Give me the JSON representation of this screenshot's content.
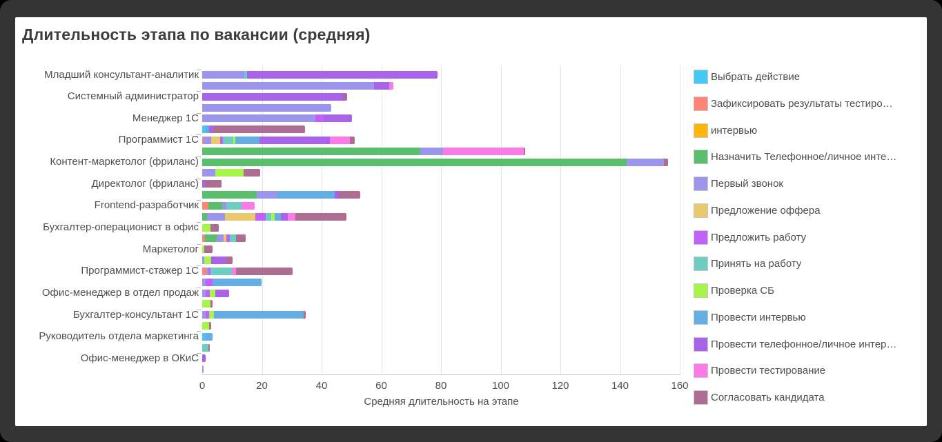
{
  "title": "Длительность этапа по вакансии (средняя)",
  "chart_data": {
    "type": "bar",
    "orientation": "horizontal",
    "stacked": true,
    "bars_per_category": 2,
    "title": "Длительность этапа по вакансии (средняя)",
    "xlabel": "Средняя длительность на этапе",
    "xlim": [
      0,
      160
    ],
    "xticks": [
      0,
      20,
      40,
      60,
      80,
      100,
      120,
      140,
      160
    ],
    "grid": true,
    "legend_position": "right",
    "stages": [
      {
        "id": "vybrat",
        "label": "Выбрать действие",
        "color": "#45C8F5"
      },
      {
        "id": "zafix",
        "label": "Зафиксировать результаты тестиро…",
        "color": "#FC8578"
      },
      {
        "id": "interv",
        "label": "интервью",
        "color": "#FFB60A"
      },
      {
        "id": "naznachit",
        "label": "Назначить Телефонное/личное инте…",
        "color": "#5BBE6C"
      },
      {
        "id": "pervy",
        "label": "Первый звонок",
        "color": "#9B96EC"
      },
      {
        "id": "offer",
        "label": "Предложение оффера",
        "color": "#E8C96E"
      },
      {
        "id": "predlozhit",
        "label": "Предложить работу",
        "color": "#C261F7"
      },
      {
        "id": "prinyat",
        "label": "Принять на работу",
        "color": "#6CCDC0"
      },
      {
        "id": "sb",
        "label": "Проверка СБ",
        "color": "#A8F54A"
      },
      {
        "id": "prov_interv",
        "label": "Провести интервью",
        "color": "#64AEE4"
      },
      {
        "id": "prov_tel",
        "label": "Провести телефонное/личное интер…",
        "color": "#A863E8"
      },
      {
        "id": "prov_test",
        "label": "Провести тестирование",
        "color": "#FA7AE8"
      },
      {
        "id": "soglasovat",
        "label": "Согласовать кандидата",
        "color": "#AD6C92"
      }
    ],
    "categories": [
      {
        "label": "Младший консультант-аналитик",
        "bars": [
          [
            {
              "s": "pervy",
              "v": 14.1
            },
            {
              "s": "prinyat",
              "v": 0.9
            },
            {
              "s": "prov_tel",
              "v": 63.8
            }
          ],
          [
            {
              "s": "pervy",
              "v": 57.6
            },
            {
              "s": "prov_tel",
              "v": 5.0
            },
            {
              "s": "prov_test",
              "v": 1.5
            }
          ]
        ]
      },
      {
        "label": "Системный администратор",
        "bars": [
          [
            {
              "s": "prov_tel",
              "v": 47.3
            },
            {
              "s": "soglasovat",
              "v": 1.3
            }
          ],
          [
            {
              "s": "pervy",
              "v": 43.2
            }
          ]
        ]
      },
      {
        "label": "Менеджер 1С",
        "bars": [
          [
            {
              "s": "pervy",
              "v": 38.0
            },
            {
              "s": "predlozhit",
              "v": 2.6
            },
            {
              "s": "prov_tel",
              "v": 9.6
            }
          ],
          [
            {
              "s": "vybrat",
              "v": 1.2
            },
            {
              "s": "prov_interv",
              "v": 1.2
            },
            {
              "s": "prov_tel",
              "v": 1.3
            },
            {
              "s": "soglasovat",
              "v": 30.7
            }
          ]
        ]
      },
      {
        "label": "Программист 1С",
        "bars": [
          [
            {
              "s": "zafix",
              "v": 0.4
            },
            {
              "s": "pervy",
              "v": 2.5
            },
            {
              "s": "offer",
              "v": 3.1
            },
            {
              "s": "predlozhit",
              "v": 1.0
            },
            {
              "s": "prinyat",
              "v": 3.4
            },
            {
              "s": "sb",
              "v": 0.8
            },
            {
              "s": "prov_interv",
              "v": 7.9
            },
            {
              "s": "prov_tel",
              "v": 23.7
            },
            {
              "s": "prov_test",
              "v": 6.6
            },
            {
              "s": "soglasovat",
              "v": 1.7
            }
          ],
          [
            {
              "s": "naznachit",
              "v": 73.1
            },
            {
              "s": "pervy",
              "v": 7.5
            },
            {
              "s": "prov_test",
              "v": 27.2
            },
            {
              "s": "soglasovat",
              "v": 0.5
            }
          ]
        ]
      },
      {
        "label": "Контент-маркетолог (фриланс)",
        "bars": [
          [
            {
              "s": "naznachit",
              "v": 142.2
            },
            {
              "s": "pervy",
              "v": 12.6
            },
            {
              "s": "soglasovat",
              "v": 1.3
            }
          ],
          [
            {
              "s": "pervy",
              "v": 4.5
            },
            {
              "s": "sb",
              "v": 9.4
            },
            {
              "s": "soglasovat",
              "v": 5.6
            }
          ]
        ]
      },
      {
        "label": "Директолог (фриланс)",
        "bars": [
          [
            {
              "s": "prov_tel",
              "v": 0.9
            },
            {
              "s": "soglasovat",
              "v": 5.6
            }
          ],
          [
            {
              "s": "naznachit",
              "v": 18.3
            },
            {
              "s": "pervy",
              "v": 6.8
            },
            {
              "s": "prov_interv",
              "v": 19.4
            },
            {
              "s": "prov_tel",
              "v": 1.4
            },
            {
              "s": "soglasovat",
              "v": 7.1
            }
          ]
        ]
      },
      {
        "label": "Frontend-разработчик",
        "bars": [
          [
            {
              "s": "zafix",
              "v": 2.1
            },
            {
              "s": "naznachit",
              "v": 4.5
            },
            {
              "s": "pervy",
              "v": 1.4
            },
            {
              "s": "prinyat",
              "v": 5.2
            },
            {
              "s": "prov_test",
              "v": 4.4
            }
          ],
          [
            {
              "s": "naznachit",
              "v": 1.6
            },
            {
              "s": "pervy",
              "v": 6.0
            },
            {
              "s": "offer",
              "v": 10.2
            },
            {
              "s": "predlozhit",
              "v": 3.5
            },
            {
              "s": "prinyat",
              "v": 1.9
            },
            {
              "s": "sb",
              "v": 1.0
            },
            {
              "s": "prov_interv",
              "v": 2.1
            },
            {
              "s": "prov_tel",
              "v": 2.5
            },
            {
              "s": "prov_test",
              "v": 2.5
            },
            {
              "s": "soglasovat",
              "v": 17.1
            }
          ]
        ]
      },
      {
        "label": "Бухгалтер-операционист в офис",
        "bars": [
          [
            {
              "s": "sb",
              "v": 2.8
            },
            {
              "s": "soglasovat",
              "v": 2.8
            }
          ],
          [
            {
              "s": "zafix",
              "v": 1.0
            },
            {
              "s": "naznachit",
              "v": 3.9
            },
            {
              "s": "pervy",
              "v": 2.3
            },
            {
              "s": "offer",
              "v": 1.0
            },
            {
              "s": "predlozhit",
              "v": 1.1
            },
            {
              "s": "prinyat",
              "v": 2.1
            },
            {
              "s": "soglasovat",
              "v": 3.1
            }
          ]
        ]
      },
      {
        "label": "Маркетолог",
        "bars": [
          [
            {
              "s": "sb",
              "v": 0.6
            },
            {
              "s": "soglasovat",
              "v": 2.9
            }
          ],
          [
            {
              "s": "pervy",
              "v": 0.8
            },
            {
              "s": "sb",
              "v": 2.1
            },
            {
              "s": "prov_tel",
              "v": 5.3
            },
            {
              "s": "soglasovat",
              "v": 1.9
            }
          ]
        ]
      },
      {
        "label": "Программист-стажер 1С",
        "bars": [
          [
            {
              "s": "zafix",
              "v": 1.5
            },
            {
              "s": "pervy",
              "v": 0.6
            },
            {
              "s": "predlozhit",
              "v": 0.7
            },
            {
              "s": "prinyat",
              "v": 7.1
            },
            {
              "s": "prov_test",
              "v": 1.5
            },
            {
              "s": "soglasovat",
              "v": 18.9
            }
          ],
          [
            {
              "s": "pervy",
              "v": 1.2
            },
            {
              "s": "predlozhit",
              "v": 2.2
            },
            {
              "s": "prov_interv",
              "v": 16.4
            }
          ]
        ]
      },
      {
        "label": "Офис-менеджер в отдел продаж",
        "bars": [
          [
            {
              "s": "pervy",
              "v": 1.1
            },
            {
              "s": "predlozhit",
              "v": 1.5
            },
            {
              "s": "sb",
              "v": 1.9
            },
            {
              "s": "prov_tel",
              "v": 4.6
            }
          ],
          [
            {
              "s": "sb",
              "v": 2.8
            },
            {
              "s": "soglasovat",
              "v": 0.6
            }
          ]
        ]
      },
      {
        "label": "Бухгалтер-консультант 1С",
        "bars": [
          [
            {
              "s": "pervy",
              "v": 1.1
            },
            {
              "s": "predlozhit",
              "v": 1.3
            },
            {
              "s": "sb",
              "v": 1.5
            },
            {
              "s": "prov_interv",
              "v": 30.2
            },
            {
              "s": "soglasovat",
              "v": 0.6
            }
          ],
          [
            {
              "s": "sb",
              "v": 2.4
            },
            {
              "s": "soglasovat",
              "v": 0.7
            }
          ]
        ]
      },
      {
        "label": "Руководитель отдела маркетинга",
        "bars": [
          [
            {
              "s": "vybrat",
              "v": 0.9
            },
            {
              "s": "prov_interv",
              "v": 2.6
            }
          ],
          [
            {
              "s": "prinyat",
              "v": 2.1
            },
            {
              "s": "soglasovat",
              "v": 0.5
            }
          ]
        ]
      },
      {
        "label": "Офис-менеджер в ОКиС",
        "bars": [
          [
            {
              "s": "prov_tel",
              "v": 1.1
            }
          ],
          [
            {
              "s": "pervy",
              "v": 0.5
            }
          ]
        ]
      }
    ]
  }
}
